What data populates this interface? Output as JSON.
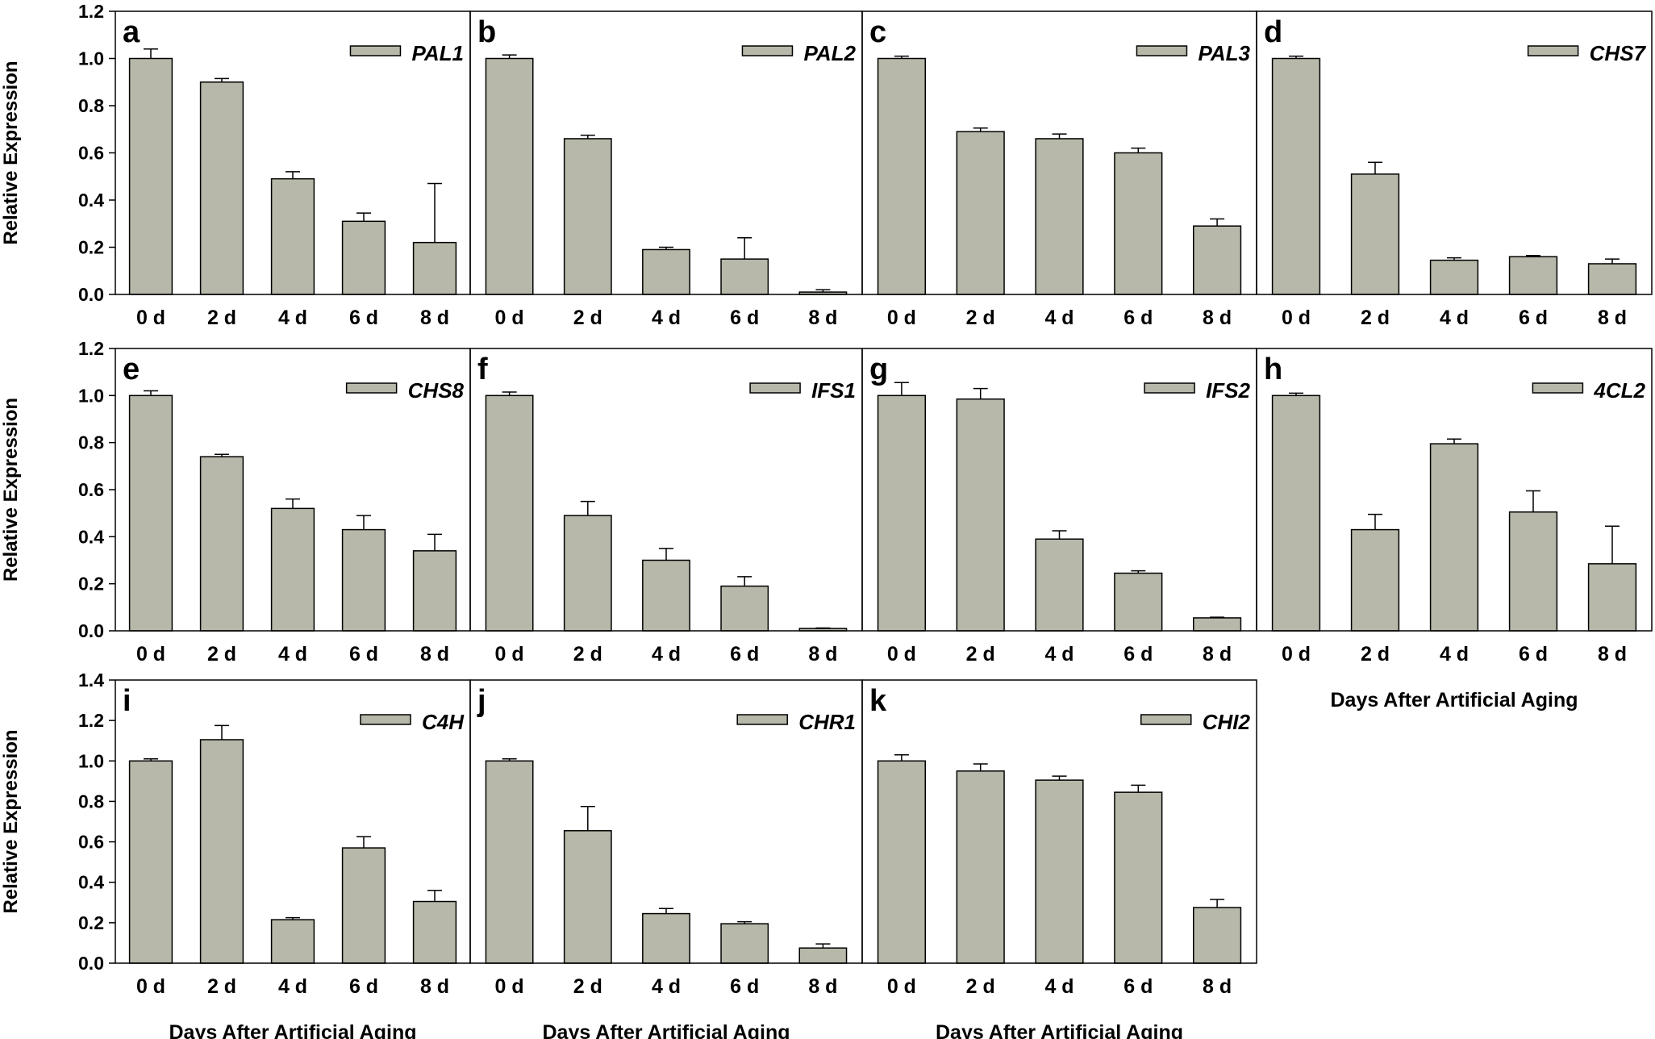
{
  "colors": {
    "bar": "#b7b8a9",
    "stroke": "#000000",
    "background": "#ffffff"
  },
  "y_axis_label": "Relative Expression",
  "x_axis_label": "Days After Artificial Aging",
  "chart_data": [
    {
      "letter": "a",
      "gene": "PAL1",
      "type": "bar",
      "categories": [
        "0 d",
        "2 d",
        "4 d",
        "6 d",
        "8 d"
      ],
      "values": [
        1.0,
        0.9,
        0.49,
        0.31,
        0.22
      ],
      "errors": [
        0.04,
        0.015,
        0.03,
        0.035,
        0.25
      ],
      "ylim": [
        0,
        1.2
      ],
      "yticks": [
        "0.0",
        "0.2",
        "0.4",
        "0.6",
        "0.8",
        "1.0",
        "1.2"
      ],
      "ylabel": "Relative Expression",
      "xlabel": ""
    },
    {
      "letter": "b",
      "gene": "PAL2",
      "type": "bar",
      "categories": [
        "0 d",
        "2 d",
        "4 d",
        "6 d",
        "8 d"
      ],
      "values": [
        1.0,
        0.66,
        0.19,
        0.15,
        0.01
      ],
      "errors": [
        0.015,
        0.015,
        0.01,
        0.09,
        0.01
      ],
      "ylim": [
        0,
        1.2
      ],
      "yticks": [],
      "ylabel": "",
      "xlabel": ""
    },
    {
      "letter": "c",
      "gene": "PAL3",
      "type": "bar",
      "categories": [
        "0 d",
        "2 d",
        "4 d",
        "6 d",
        "8 d"
      ],
      "values": [
        1.0,
        0.69,
        0.66,
        0.6,
        0.29
      ],
      "errors": [
        0.01,
        0.015,
        0.02,
        0.02,
        0.03
      ],
      "ylim": [
        0,
        1.2
      ],
      "yticks": [],
      "ylabel": "",
      "xlabel": ""
    },
    {
      "letter": "d",
      "gene": "CHS7",
      "type": "bar",
      "categories": [
        "0 d",
        "2 d",
        "4 d",
        "6 d",
        "8 d"
      ],
      "values": [
        1.0,
        0.51,
        0.145,
        0.16,
        0.13
      ],
      "errors": [
        0.01,
        0.05,
        0.01,
        0.005,
        0.02
      ],
      "ylim": [
        0,
        1.2
      ],
      "yticks": [],
      "ylabel": "",
      "xlabel": ""
    },
    {
      "letter": "e",
      "gene": "CHS8",
      "type": "bar",
      "categories": [
        "0 d",
        "2 d",
        "4 d",
        "6 d",
        "8 d"
      ],
      "values": [
        1.0,
        0.74,
        0.52,
        0.43,
        0.34
      ],
      "errors": [
        0.02,
        0.01,
        0.04,
        0.06,
        0.07
      ],
      "ylim": [
        0,
        1.2
      ],
      "yticks": [
        "0.0",
        "0.2",
        "0.4",
        "0.6",
        "0.8",
        "1.0",
        "1.2"
      ],
      "ylabel": "Relative Expression",
      "xlabel": ""
    },
    {
      "letter": "f",
      "gene": "IFS1",
      "type": "bar",
      "categories": [
        "0 d",
        "2 d",
        "4 d",
        "6 d",
        "8 d"
      ],
      "values": [
        1.0,
        0.49,
        0.3,
        0.19,
        0.01
      ],
      "errors": [
        0.015,
        0.06,
        0.05,
        0.04,
        0.002
      ],
      "ylim": [
        0,
        1.2
      ],
      "yticks": [],
      "ylabel": "",
      "xlabel": ""
    },
    {
      "letter": "g",
      "gene": "IFS2",
      "type": "bar",
      "categories": [
        "0 d",
        "2 d",
        "4 d",
        "6 d",
        "8 d"
      ],
      "values": [
        1.0,
        0.985,
        0.39,
        0.245,
        0.055
      ],
      "errors": [
        0.055,
        0.045,
        0.035,
        0.01,
        0.003
      ],
      "ylim": [
        0,
        1.2
      ],
      "yticks": [],
      "ylabel": "",
      "xlabel": ""
    },
    {
      "letter": "h",
      "gene": "4CL2",
      "type": "bar",
      "categories": [
        "0 d",
        "2 d",
        "4 d",
        "6 d",
        "8 d"
      ],
      "values": [
        1.0,
        0.43,
        0.795,
        0.505,
        0.285
      ],
      "errors": [
        0.01,
        0.065,
        0.02,
        0.09,
        0.16
      ],
      "ylim": [
        0,
        1.2
      ],
      "yticks": [],
      "ylabel": "",
      "xlabel": "Days After Artificial Aging"
    },
    {
      "letter": "i",
      "gene": "C4H",
      "type": "bar",
      "categories": [
        "0 d",
        "2 d",
        "4 d",
        "6 d",
        "8 d"
      ],
      "values": [
        1.0,
        1.105,
        0.215,
        0.57,
        0.305
      ],
      "errors": [
        0.01,
        0.07,
        0.01,
        0.055,
        0.055
      ],
      "ylim": [
        0,
        1.4
      ],
      "yticks": [
        "0.0",
        "0.2",
        "0.4",
        "0.6",
        "0.8",
        "1.0",
        "1.2",
        "1.4"
      ],
      "ylabel": "Relative Expression",
      "xlabel": "Days After Artificial Aging"
    },
    {
      "letter": "j",
      "gene": "CHR1",
      "type": "bar",
      "categories": [
        "0 d",
        "2 d",
        "4 d",
        "6 d",
        "8 d"
      ],
      "values": [
        1.0,
        0.655,
        0.245,
        0.195,
        0.075
      ],
      "errors": [
        0.01,
        0.12,
        0.025,
        0.01,
        0.02
      ],
      "ylim": [
        0,
        1.4
      ],
      "yticks": [],
      "ylabel": "",
      "xlabel": "Days After Artificial Aging"
    },
    {
      "letter": "k",
      "gene": "CHI2",
      "type": "bar",
      "categories": [
        "0 d",
        "2 d",
        "4 d",
        "6 d",
        "8 d"
      ],
      "values": [
        1.0,
        0.95,
        0.905,
        0.845,
        0.275
      ],
      "errors": [
        0.03,
        0.035,
        0.02,
        0.035,
        0.04
      ],
      "ylim": [
        0,
        1.4
      ],
      "yticks": [],
      "ylabel": "",
      "xlabel": "Days After Artificial Aging"
    }
  ]
}
